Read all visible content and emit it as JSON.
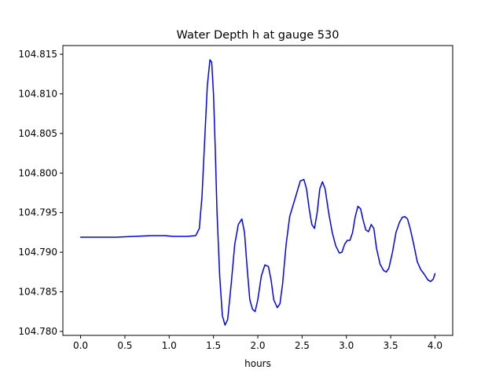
{
  "chart_data": {
    "type": "line",
    "title": "Water Depth h at gauge 530",
    "xlabel": "hours",
    "ylabel": "",
    "xlim": [
      -0.2,
      4.2
    ],
    "ylim": [
      104.7795,
      104.8161
    ],
    "xticks": [
      0.0,
      0.5,
      1.0,
      1.5,
      2.0,
      2.5,
      3.0,
      3.5,
      4.0
    ],
    "xtick_labels": [
      "0.0",
      "0.5",
      "1.0",
      "1.5",
      "2.0",
      "2.5",
      "3.0",
      "3.5",
      "4.0"
    ],
    "yticks": [
      104.78,
      104.785,
      104.79,
      104.795,
      104.8,
      104.805,
      104.81,
      104.815
    ],
    "ytick_labels": [
      "104.780",
      "104.785",
      "104.790",
      "104.795",
      "104.800",
      "104.805",
      "104.810",
      "104.815"
    ],
    "grid": false,
    "series": [
      {
        "name": "",
        "color": "#0000ff",
        "x": [
          0.0,
          0.2,
          0.4,
          0.6,
          0.8,
          0.95,
          1.05,
          1.2,
          1.3,
          1.34,
          1.37,
          1.4,
          1.43,
          1.46,
          1.48,
          1.5,
          1.52,
          1.54,
          1.57,
          1.6,
          1.63,
          1.66,
          1.7,
          1.74,
          1.78,
          1.82,
          1.85,
          1.88,
          1.91,
          1.94,
          1.97,
          2.0,
          2.04,
          2.08,
          2.12,
          2.15,
          2.18,
          2.22,
          2.25,
          2.28,
          2.32,
          2.36,
          2.4,
          2.44,
          2.48,
          2.52,
          2.55,
          2.58,
          2.61,
          2.64,
          2.67,
          2.7,
          2.73,
          2.76,
          2.8,
          2.84,
          2.88,
          2.92,
          2.95,
          2.98,
          3.01,
          3.04,
          3.07,
          3.1,
          3.13,
          3.16,
          3.19,
          3.22,
          3.25,
          3.28,
          3.31,
          3.34,
          3.38,
          3.42,
          3.45,
          3.48,
          3.52,
          3.56,
          3.6,
          3.63,
          3.66,
          3.69,
          3.72,
          3.76,
          3.8,
          3.84,
          3.88,
          3.92,
          3.95,
          3.98,
          4.0
        ],
        "y": [
          104.7919,
          104.7919,
          104.7919,
          104.792,
          104.7921,
          104.7921,
          104.792,
          104.792,
          104.7921,
          104.793,
          104.797,
          104.804,
          104.811,
          104.8143,
          104.814,
          104.81,
          104.803,
          104.795,
          104.787,
          104.782,
          104.7808,
          104.7815,
          104.786,
          104.791,
          104.7935,
          104.7942,
          104.7925,
          104.788,
          104.784,
          104.7828,
          104.7825,
          104.784,
          104.787,
          104.7884,
          104.7882,
          104.7865,
          104.784,
          104.783,
          104.7835,
          104.786,
          104.791,
          104.7945,
          104.796,
          104.7975,
          104.799,
          104.7992,
          104.798,
          104.7955,
          104.7935,
          104.793,
          104.795,
          104.798,
          104.7989,
          104.798,
          104.795,
          104.7925,
          104.7908,
          104.7899,
          104.79,
          104.791,
          104.7915,
          104.7915,
          104.7925,
          104.7945,
          104.7958,
          104.7955,
          104.794,
          104.7928,
          104.7926,
          104.7935,
          104.793,
          104.7905,
          104.7885,
          104.7877,
          104.7875,
          104.788,
          104.79,
          104.7925,
          104.7938,
          104.7944,
          104.7945,
          104.7942,
          104.793,
          104.791,
          104.7888,
          104.7878,
          104.7872,
          104.7865,
          104.7863,
          104.7866,
          104.7873
        ]
      }
    ]
  }
}
